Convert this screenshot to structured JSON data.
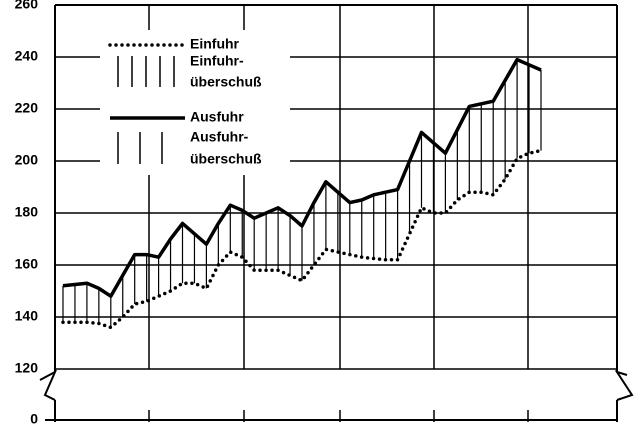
{
  "chart_data": {
    "type": "line",
    "categories": [
      null,
      null,
      null,
      null,
      null,
      null,
      null,
      null,
      null,
      null,
      null,
      null,
      null,
      null,
      null,
      null,
      null,
      null,
      null,
      null,
      null,
      null,
      null,
      null,
      null,
      null,
      null,
      null,
      null,
      null,
      null,
      null,
      null,
      null,
      null,
      null,
      null,
      null,
      null,
      null,
      null
    ],
    "series": [
      {
        "name": "Einfuhr",
        "color": "#000000",
        "style": "dotted",
        "values": [
          138,
          138,
          138,
          137.5,
          136,
          140,
          145,
          146,
          148,
          150,
          153,
          153,
          151,
          160,
          165,
          163,
          158,
          158,
          158,
          156,
          154,
          160,
          166,
          165,
          164,
          163,
          162.5,
          162,
          162,
          172,
          182,
          180,
          180,
          185,
          188,
          188,
          187,
          193,
          201,
          203,
          204
        ]
      },
      {
        "name": "Ausfuhr",
        "color": "#000000",
        "style": "solid",
        "values": [
          152,
          152.5,
          153,
          151,
          148,
          156,
          164,
          164,
          163,
          170,
          176,
          172,
          168,
          176,
          183,
          181,
          178,
          180,
          182,
          179,
          175,
          184,
          192,
          188,
          184,
          185,
          187,
          188,
          189,
          200,
          211,
          207,
          203,
          212,
          221,
          222,
          223,
          231,
          239,
          237,
          235
        ]
      }
    ],
    "hatch_legend": [
      {
        "lines": [
          "Einfuhr-",
          "überschuß"
        ]
      },
      {
        "lines": [
          "Ausfuhr-",
          "überschuß"
        ]
      }
    ],
    "ylim": [
      120,
      260
    ],
    "yticks": [
      0,
      120,
      140,
      160,
      180,
      200,
      220,
      240,
      260
    ],
    "axis_break": true,
    "grid": true
  }
}
